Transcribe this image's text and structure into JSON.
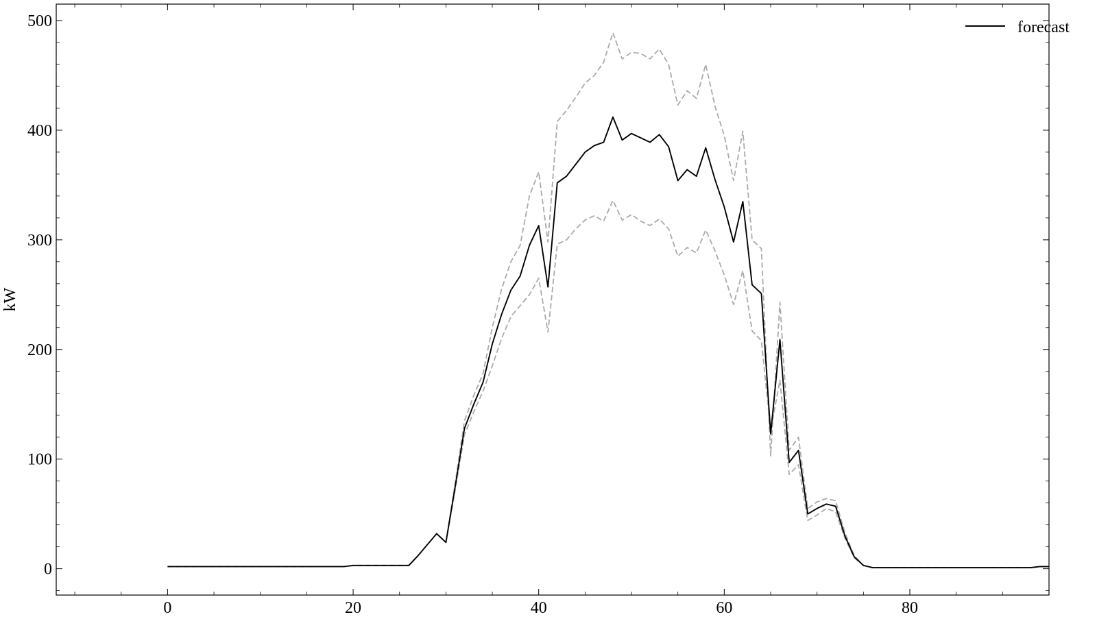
{
  "chart_data": {
    "type": "line",
    "title": "",
    "xlabel": "",
    "ylabel": "kW",
    "xlim": [
      -12,
      95
    ],
    "ylim": [
      -24,
      515
    ],
    "x_ticks": [
      0,
      20,
      40,
      60,
      80
    ],
    "y_ticks": [
      0,
      100,
      200,
      300,
      400,
      500
    ],
    "x_tick_labels": [
      "0",
      "20",
      "40",
      "60",
      "80"
    ],
    "y_tick_labels": [
      "0",
      "100",
      "200",
      "300",
      "400",
      "500"
    ],
    "grid": false,
    "legend": {
      "position": "top-right",
      "entries": [
        "forecast"
      ]
    },
    "colors": {
      "forecast": "#000000",
      "bounds": "#aaaaaa"
    },
    "series": [
      {
        "name": "forecast",
        "style": "solid",
        "values": [
          2,
          2,
          2,
          2,
          2,
          2,
          2,
          2,
          2,
          2,
          2,
          2,
          2,
          2,
          2,
          2,
          2,
          2,
          2,
          2,
          3,
          3,
          3,
          3,
          3,
          3,
          3,
          12,
          22,
          32,
          24,
          75,
          128,
          150,
          170,
          205,
          232,
          254,
          267,
          295,
          313,
          257,
          352,
          358,
          369,
          380,
          386,
          389,
          412,
          391,
          397,
          393,
          389,
          396,
          385,
          354,
          364,
          358,
          384,
          355,
          330,
          298,
          335,
          259,
          251,
          123,
          209,
          97,
          108,
          50,
          55,
          59,
          57,
          30,
          11,
          3,
          1,
          1,
          1,
          1,
          1,
          1,
          1,
          1,
          1,
          1,
          1,
          1,
          1,
          1,
          1,
          1,
          1,
          1,
          2,
          2
        ]
      },
      {
        "name": "",
        "style": "dashed",
        "values": [
          2,
          2,
          2,
          2,
          2,
          2,
          2,
          2,
          2,
          2,
          2,
          2,
          2,
          2,
          2,
          2,
          2,
          2,
          2,
          2,
          3,
          3,
          3,
          3,
          3,
          3,
          3,
          12,
          22,
          32,
          24,
          78,
          135,
          158,
          178,
          220,
          255,
          280,
          295,
          340,
          362,
          298,
          408,
          418,
          430,
          443,
          450,
          462,
          489,
          465,
          471,
          470,
          465,
          474,
          460,
          423,
          436,
          429,
          460,
          422,
          395,
          354,
          399,
          300,
          292,
          103,
          243,
          108,
          120,
          55,
          61,
          64,
          62,
          33,
          12,
          3,
          1,
          1,
          1,
          1,
          1,
          1,
          1,
          1,
          1,
          1,
          1,
          1,
          1,
          1,
          1,
          1,
          1,
          1,
          2,
          2
        ]
      },
      {
        "name": "",
        "style": "dashed",
        "values": [
          2,
          2,
          2,
          2,
          2,
          2,
          2,
          2,
          2,
          2,
          2,
          2,
          2,
          2,
          2,
          2,
          2,
          2,
          2,
          2,
          3,
          3,
          3,
          3,
          3,
          3,
          3,
          12,
          22,
          32,
          24,
          72,
          122,
          143,
          162,
          185,
          210,
          230,
          240,
          250,
          265,
          216,
          296,
          300,
          310,
          318,
          322,
          317,
          336,
          318,
          323,
          317,
          313,
          319,
          310,
          285,
          293,
          288,
          309,
          290,
          268,
          241,
          272,
          217,
          208,
          126,
          172,
          86,
          95,
          44,
          49,
          55,
          52,
          28,
          10,
          3,
          1,
          1,
          1,
          1,
          1,
          1,
          1,
          1,
          1,
          1,
          1,
          1,
          1,
          1,
          1,
          1,
          1,
          1,
          2,
          2
        ]
      }
    ]
  }
}
